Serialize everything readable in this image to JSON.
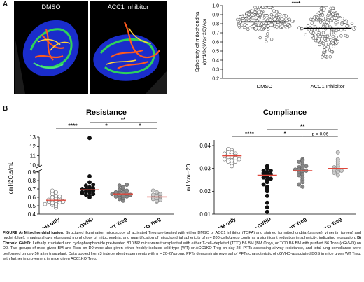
{
  "panel_a": {
    "letter": "A",
    "image_left_label": "DMSO",
    "image_right_label": "ACC1 Inhibitor"
  },
  "panel_b": {
    "letter": "B"
  },
  "chart_data": [
    {
      "id": "sphericity",
      "type": "scatter",
      "title": "",
      "ylabel": "Sphericity of mitochondria",
      "ylabel2": "((π^1/3x(6Vp)^2/3)/Ap)",
      "categories": [
        "DMSO",
        "ACC1 Inhibitor"
      ],
      "yticks": [
        "0.2",
        "0.3",
        "0.4",
        "0.5",
        "0.6",
        "0.7",
        "0.8",
        "0.9",
        "1.0"
      ],
      "ylim": [
        0.2,
        1.0
      ],
      "means": [
        0.82,
        0.75
      ],
      "significance": [
        {
          "between": [
            0,
            1
          ],
          "label": "****"
        }
      ],
      "point_color": "#ffffff",
      "point_stroke": "#555555",
      "mean_color": "#000000",
      "n_per_group": 200
    },
    {
      "id": "resistance",
      "type": "scatter",
      "title": "Resistance",
      "ylabel": "cmH2O.s/mL",
      "categories": [
        "BM only",
        "cGVHD",
        "WT Treg",
        "ACC1KO Treg"
      ],
      "yticks_upper": [
        "10",
        "11",
        "12",
        "13"
      ],
      "yticks_lower": [
        "0.4",
        "0.5",
        "0.6",
        "0.7",
        "0.8",
        "0.9"
      ],
      "ylim_lower": [
        0.4,
        0.9
      ],
      "ylim_upper": [
        10,
        13
      ],
      "axis_break": true,
      "series": [
        {
          "name": "BM only",
          "fill": "#ffffff",
          "stroke": "#777777",
          "mean": 0.565,
          "values": [
            0.48,
            0.5,
            0.51,
            0.52,
            0.53,
            0.54,
            0.55,
            0.55,
            0.56,
            0.57,
            0.58,
            0.59,
            0.6,
            0.61,
            0.62,
            0.64,
            0.66,
            0.68,
            0.52,
            0.57
          ]
        },
        {
          "name": "cGVHD",
          "fill": "#111111",
          "stroke": "#111111",
          "mean": 0.69,
          "values": [
            0.6,
            0.62,
            0.63,
            0.64,
            0.65,
            0.66,
            0.67,
            0.68,
            0.69,
            0.7,
            0.71,
            0.72,
            0.74,
            0.75,
            0.78,
            0.85,
            12.9,
            0.66,
            0.7
          ]
        },
        {
          "name": "WT Treg",
          "fill": "#888888",
          "stroke": "#666666",
          "mean": 0.64,
          "values": [
            0.56,
            0.58,
            0.59,
            0.6,
            0.61,
            0.62,
            0.63,
            0.64,
            0.65,
            0.66,
            0.67,
            0.68,
            0.7,
            0.72,
            0.74,
            0.63,
            0.61,
            0.66,
            0.69,
            0.75,
            0.64
          ]
        },
        {
          "name": "ACC1KO Treg",
          "fill": "#cccccc",
          "stroke": "#888888",
          "mean": 0.605,
          "values": [
            0.55,
            0.56,
            0.58,
            0.59,
            0.6,
            0.61,
            0.62,
            0.63,
            0.64,
            0.66,
            0.68,
            0.57
          ]
        }
      ],
      "mean_color": "#e0463a",
      "significance": [
        {
          "between": [
            0,
            1
          ],
          "label": "****",
          "level": 1
        },
        {
          "between": [
            1,
            2
          ],
          "label": "*",
          "level": 1
        },
        {
          "between": [
            2,
            3
          ],
          "label": "*",
          "level": 1
        },
        {
          "between": [
            1,
            3
          ],
          "label": "**",
          "level": 2
        }
      ]
    },
    {
      "id": "compliance",
      "type": "scatter",
      "title": "Compliance",
      "ylabel": "mL/cmH20",
      "categories": [
        "BM only",
        "cGVHD",
        "WT Treg",
        "ACC1KO Treg"
      ],
      "yticks": [
        "0.01",
        "0.02",
        "0.03",
        "0.04"
      ],
      "ylim": [
        0.01,
        0.04
      ],
      "series": [
        {
          "name": "BM only",
          "fill": "#ffffff",
          "stroke": "#777777",
          "mean": 0.0355,
          "values": [
            0.038,
            0.037,
            0.0375,
            0.036,
            0.0365,
            0.036,
            0.0355,
            0.035,
            0.0355,
            0.035,
            0.0345,
            0.034,
            0.0335,
            0.033,
            0.032,
            0.031,
            0.0385,
            0.0365,
            0.034,
            0.033
          ]
        },
        {
          "name": "cGVHD",
          "fill": "#111111",
          "stroke": "#111111",
          "mean": 0.027,
          "values": [
            0.031,
            0.03,
            0.029,
            0.0285,
            0.028,
            0.0275,
            0.027,
            0.0265,
            0.026,
            0.025,
            0.024,
            0.023,
            0.022,
            0.021,
            0.02,
            0.018,
            0.015,
            0.013,
            0.011,
            0.0275,
            0.0255,
            0.029
          ]
        },
        {
          "name": "WT Treg",
          "fill": "#888888",
          "stroke": "#666666",
          "mean": 0.029,
          "values": [
            0.034,
            0.0335,
            0.033,
            0.032,
            0.031,
            0.0305,
            0.03,
            0.0295,
            0.029,
            0.0285,
            0.028,
            0.0275,
            0.027,
            0.026,
            0.025,
            0.024,
            0.023,
            0.022,
            0.0295,
            0.031
          ]
        },
        {
          "name": "ACC1KO Treg",
          "fill": "#cccccc",
          "stroke": "#888888",
          "mean": 0.03,
          "values": [
            0.037,
            0.034,
            0.033,
            0.032,
            0.031,
            0.0305,
            0.03,
            0.0295,
            0.029,
            0.0285,
            0.028,
            0.027
          ]
        }
      ],
      "mean_color": "#e0463a",
      "significance": [
        {
          "between": [
            0,
            1
          ],
          "label": "****",
          "level": 1
        },
        {
          "between": [
            1,
            2
          ],
          "label": "*",
          "level": 1
        },
        {
          "between": [
            2,
            3
          ],
          "label": "p = 0.06",
          "level": 1
        },
        {
          "between": [
            1,
            3
          ],
          "label": "**",
          "level": 2
        }
      ]
    }
  ],
  "caption": {
    "bold1": "FIGURE  A) Mitochondrial  fusion:",
    "text1": " Structured  illumination microscopy of activated Treg pre-treated  with either DMSO  or ACC1  inhibitor (TOFA) and stained for mitochondria (orange), vimentin (green) and nuclei (blue). Imaging shows elongated morphology of mitochondria, and quantification of mitochondrial sphericity of n = 200 cells/group confirms a significant reduction in sphericity, indicating elongation.",
    "bold2": "  B) Chronic GVHD:",
    "text2": " Lethally irradiated and cyclophosphamide pre-treated B10.BR mice were transplanted with either T-cell–depleted (TCD) B6 BM (BM Only), or TCD B6 BM with purified B6 Tcon (cGVHD) on D0. Two groups of mice given BM and Tcon on D0 were also given either freshly isolated wild type (WT) or ACC1KO Treg on day 28. PFTs assessing airway resistance, and total lung compliance were performed on day 56 after transplant. Data pooled from 3 independent experiments with n = 20-27/group. PFTs demonstrate reversal of PFTs characteristic of cGVHD-associated BOS in mice given WT Treg, with further improvement  in mice given ACC1KO Treg."
  }
}
